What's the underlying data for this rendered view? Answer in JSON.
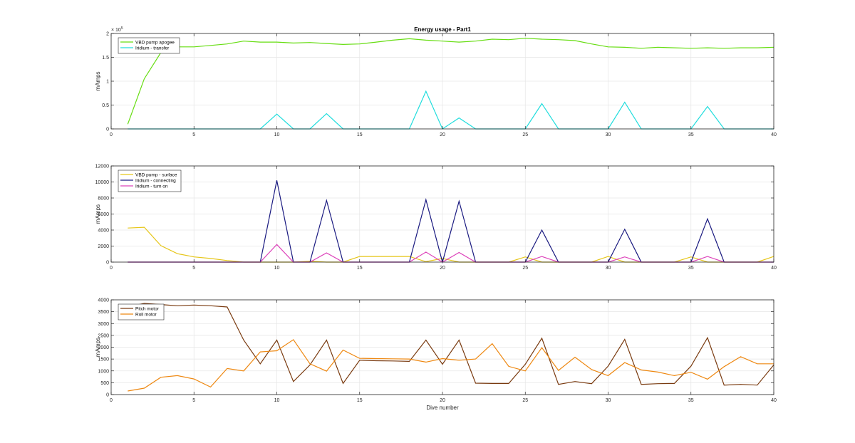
{
  "figure": {
    "title": "Energy usage - Part1",
    "xlabel": "Dive number"
  },
  "chart_data": [
    {
      "type": "line",
      "title": "Energy usage - Part1",
      "xlabel": "",
      "ylabel": "mAmps",
      "xlim": [
        0,
        40
      ],
      "ylim": [
        0,
        2
      ],
      "exponent_label": "× 10^5",
      "exponent": 5,
      "xticks": [
        0,
        5,
        10,
        15,
        20,
        25,
        30,
        35,
        40
      ],
      "yticks": [
        0,
        0.5,
        1,
        1.5,
        2
      ],
      "ytick_labels": [
        "0",
        "0.5",
        "1",
        "1.5",
        "2"
      ],
      "grid": true,
      "legend_position": "top-left",
      "x": [
        1,
        2,
        3,
        4,
        5,
        6,
        7,
        8,
        9,
        10,
        11,
        12,
        13,
        14,
        15,
        16,
        17,
        18,
        19,
        20,
        21,
        22,
        23,
        24,
        25,
        26,
        27,
        28,
        29,
        30,
        31,
        32,
        33,
        34,
        35,
        36,
        37,
        38,
        39,
        40
      ],
      "series": [
        {
          "name": "VBD pump apogee",
          "color": "#66dd11",
          "values": [
            0.1,
            1.05,
            1.6,
            1.72,
            1.72,
            1.75,
            1.78,
            1.84,
            1.82,
            1.82,
            1.8,
            1.81,
            1.79,
            1.77,
            1.78,
            1.82,
            1.86,
            1.89,
            1.86,
            1.84,
            1.82,
            1.84,
            1.88,
            1.87,
            1.9,
            1.88,
            1.87,
            1.85,
            1.78,
            1.72,
            1.71,
            1.69,
            1.71,
            1.7,
            1.69,
            1.7,
            1.69,
            1.7,
            1.7,
            1.71
          ]
        },
        {
          "name": "Iridium - transfer",
          "color": "#22dddd",
          "values": [
            0,
            0,
            0,
            0,
            0,
            0,
            0,
            0,
            0,
            0.31,
            0,
            0,
            0.32,
            0,
            0,
            0,
            0,
            0,
            0.79,
            0,
            0.23,
            0,
            0,
            0,
            0,
            0.53,
            0,
            0,
            0,
            0,
            0.56,
            0,
            0,
            0,
            0,
            0.47,
            0,
            0,
            0,
            0
          ]
        }
      ]
    },
    {
      "type": "line",
      "xlabel": "",
      "ylabel": "mAmps",
      "xlim": [
        0,
        40
      ],
      "ylim": [
        0,
        12000
      ],
      "xticks": [
        0,
        5,
        10,
        15,
        20,
        25,
        30,
        35,
        40
      ],
      "yticks": [
        0,
        2000,
        4000,
        6000,
        8000,
        10000,
        12000
      ],
      "ytick_labels": [
        "0",
        "2000",
        "4000",
        "6000",
        "8000",
        "10000",
        "12000"
      ],
      "grid": true,
      "legend_position": "top-left",
      "x": [
        1,
        2,
        3,
        4,
        5,
        6,
        7,
        8,
        9,
        10,
        11,
        12,
        13,
        14,
        15,
        16,
        17,
        18,
        19,
        20,
        21,
        22,
        23,
        24,
        25,
        26,
        27,
        28,
        29,
        30,
        31,
        32,
        33,
        34,
        35,
        36,
        37,
        38,
        39,
        40
      ],
      "series": [
        {
          "name": "VBD pump - surface",
          "color": "#e6c619",
          "values": [
            4250,
            4350,
            2050,
            1050,
            650,
            450,
            200,
            0,
            0,
            0,
            0,
            100,
            0,
            0,
            700,
            700,
            700,
            700,
            50,
            450,
            0,
            0,
            0,
            0,
            650,
            0,
            0,
            0,
            0,
            700,
            0,
            0,
            0,
            0,
            650,
            0,
            0,
            0,
            0,
            700
          ]
        },
        {
          "name": "Iridium - connecting",
          "color": "#1a1a80",
          "values": [
            0,
            0,
            0,
            0,
            0,
            0,
            0,
            0,
            0,
            10200,
            0,
            0,
            7700,
            0,
            0,
            0,
            0,
            0,
            7800,
            0,
            7600,
            0,
            0,
            0,
            0,
            4000,
            0,
            0,
            0,
            0,
            4100,
            0,
            0,
            0,
            0,
            5400,
            0,
            0,
            0,
            0
          ]
        },
        {
          "name": "Iridium - turn on",
          "color": "#dd44bb",
          "values": [
            0,
            0,
            0,
            0,
            0,
            0,
            0,
            0,
            0,
            2200,
            0,
            0,
            1150,
            0,
            0,
            0,
            0,
            0,
            1250,
            0,
            1200,
            0,
            0,
            0,
            0,
            700,
            0,
            0,
            0,
            0,
            650,
            0,
            0,
            0,
            0,
            700,
            0,
            0,
            0,
            0
          ]
        }
      ]
    },
    {
      "type": "line",
      "xlabel": "Dive number",
      "ylabel": "mAmps",
      "xlim": [
        0,
        40
      ],
      "ylim": [
        0,
        4000
      ],
      "xticks": [
        0,
        5,
        10,
        15,
        20,
        25,
        30,
        35,
        40
      ],
      "yticks": [
        0,
        500,
        1000,
        1500,
        2000,
        2500,
        3000,
        3500,
        4000
      ],
      "ytick_labels": [
        "0",
        "500",
        "1000",
        "1500",
        "2000",
        "2500",
        "3000",
        "3500",
        "4000"
      ],
      "grid": true,
      "legend_position": "top-left",
      "x": [
        1,
        2,
        3,
        4,
        5,
        6,
        7,
        8,
        9,
        10,
        11,
        12,
        13,
        14,
        15,
        16,
        17,
        18,
        19,
        20,
        21,
        22,
        23,
        24,
        25,
        26,
        27,
        28,
        29,
        30,
        31,
        32,
        33,
        34,
        35,
        36,
        37,
        38,
        39,
        40
      ],
      "series": [
        {
          "name": "Pitch motor",
          "color": "#7a3b10",
          "values": [
            3700,
            3850,
            3800,
            3750,
            3780,
            3750,
            3700,
            2300,
            1300,
            2300,
            550,
            1250,
            2300,
            470,
            1450,
            1430,
            1420,
            1400,
            2300,
            1280,
            2300,
            480,
            470,
            470,
            1280,
            2380,
            430,
            550,
            460,
            1200,
            2330,
            430,
            460,
            470,
            1200,
            2400,
            400,
            430,
            400,
            1250
          ]
        },
        {
          "name": "Roll motor",
          "color": "#ee8811",
          "values": [
            150,
            270,
            730,
            800,
            660,
            320,
            1100,
            1000,
            1800,
            1850,
            2320,
            1300,
            990,
            1880,
            1530,
            1520,
            1510,
            1500,
            1370,
            1520,
            1450,
            1500,
            2150,
            1190,
            1000,
            1980,
            1020,
            1580,
            1060,
            800,
            1350,
            1040,
            950,
            800,
            940,
            650,
            1180,
            1600,
            1300,
            1300
          ]
        }
      ]
    }
  ]
}
